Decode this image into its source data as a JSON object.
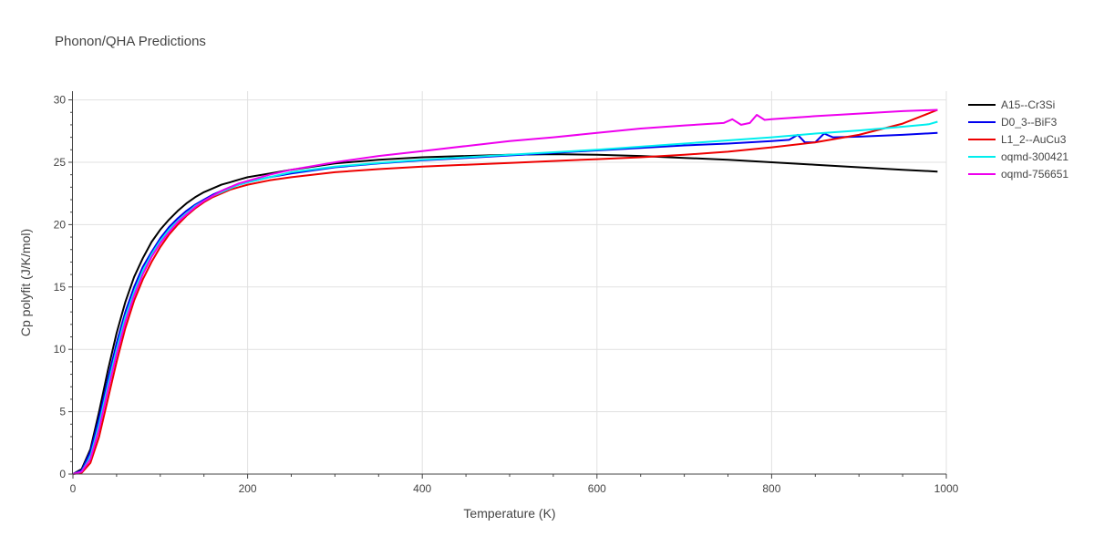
{
  "chart_data": {
    "type": "line",
    "title": "Phonon/QHA Predictions",
    "xlabel": "Temperature (K)",
    "ylabel": "Cp polyfit (J/K/mol)",
    "xlim": [
      0,
      1000
    ],
    "ylim": [
      0,
      30.7
    ],
    "xticks": [
      0,
      200,
      400,
      600,
      800,
      1000
    ],
    "yticks": [
      0,
      5,
      10,
      15,
      20,
      25,
      30
    ],
    "grid": true,
    "legend_position": "top-right",
    "series": [
      {
        "name": "A15--Cr3Si",
        "color": "#000000",
        "x": [
          0,
          10,
          20,
          30,
          40,
          50,
          60,
          70,
          80,
          90,
          100,
          110,
          120,
          130,
          140,
          150,
          160,
          170,
          180,
          190,
          200,
          225,
          250,
          300,
          350,
          400,
          450,
          500,
          550,
          600,
          650,
          700,
          750,
          800,
          850,
          900,
          950,
          990
        ],
        "y": [
          0,
          0.4,
          2.0,
          5.0,
          8.3,
          11.3,
          13.8,
          15.8,
          17.3,
          18.6,
          19.6,
          20.4,
          21.1,
          21.7,
          22.2,
          22.6,
          22.9,
          23.2,
          23.4,
          23.6,
          23.8,
          24.1,
          24.4,
          24.9,
          25.2,
          25.4,
          25.5,
          25.6,
          25.65,
          25.6,
          25.5,
          25.35,
          25.2,
          25.0,
          24.8,
          24.6,
          24.4,
          24.25
        ]
      },
      {
        "name": "D0_3--BiF3",
        "color": "#0000ee",
        "x": [
          0,
          10,
          20,
          30,
          40,
          50,
          60,
          70,
          80,
          90,
          100,
          110,
          120,
          130,
          140,
          150,
          160,
          170,
          180,
          190,
          200,
          225,
          250,
          300,
          350,
          400,
          450,
          500,
          550,
          600,
          650,
          700,
          750,
          800,
          820,
          830,
          838,
          850,
          860,
          870,
          900,
          950,
          990
        ],
        "y": [
          0,
          0.3,
          1.8,
          4.5,
          7.6,
          10.5,
          13.0,
          15.0,
          16.6,
          17.8,
          18.9,
          19.8,
          20.5,
          21.1,
          21.6,
          22.0,
          22.4,
          22.7,
          23.0,
          23.2,
          23.4,
          23.8,
          24.1,
          24.6,
          24.9,
          25.15,
          25.35,
          25.55,
          25.75,
          25.95,
          26.15,
          26.35,
          26.5,
          26.7,
          26.8,
          27.2,
          26.6,
          26.6,
          27.3,
          27.0,
          27.05,
          27.2,
          27.35
        ]
      },
      {
        "name": "L1_2--AuCu3",
        "color": "#ee0000",
        "x": [
          0,
          10,
          20,
          30,
          40,
          50,
          60,
          70,
          80,
          90,
          100,
          110,
          120,
          130,
          140,
          150,
          160,
          170,
          180,
          190,
          200,
          225,
          250,
          300,
          350,
          400,
          450,
          500,
          550,
          600,
          650,
          700,
          750,
          800,
          850,
          900,
          950,
          990
        ],
        "y": [
          0,
          0.1,
          0.9,
          3.0,
          6.0,
          9.0,
          11.7,
          13.9,
          15.6,
          17.0,
          18.2,
          19.2,
          20.0,
          20.7,
          21.3,
          21.8,
          22.2,
          22.5,
          22.8,
          23.0,
          23.2,
          23.55,
          23.8,
          24.2,
          24.45,
          24.65,
          24.8,
          24.95,
          25.1,
          25.25,
          25.4,
          25.6,
          25.85,
          26.2,
          26.6,
          27.2,
          28.1,
          29.2
        ]
      },
      {
        "name": "oqmd-300421",
        "color": "#00eeee",
        "x": [
          0,
          10,
          20,
          30,
          40,
          50,
          60,
          70,
          80,
          90,
          100,
          110,
          120,
          130,
          140,
          150,
          160,
          170,
          180,
          190,
          200,
          225,
          250,
          300,
          350,
          400,
          450,
          500,
          550,
          600,
          650,
          700,
          750,
          800,
          850,
          900,
          950,
          980,
          990
        ],
        "y": [
          0,
          0.2,
          1.4,
          4.0,
          7.1,
          10.0,
          12.6,
          14.6,
          16.3,
          17.6,
          18.7,
          19.6,
          20.3,
          20.9,
          21.5,
          21.9,
          22.3,
          22.6,
          22.9,
          23.2,
          23.4,
          23.8,
          24.2,
          24.65,
          24.95,
          25.2,
          25.4,
          25.6,
          25.8,
          26.0,
          26.25,
          26.5,
          26.75,
          27.0,
          27.3,
          27.55,
          27.85,
          28.05,
          28.25
        ]
      },
      {
        "name": "oqmd-756651",
        "color": "#ee00ee",
        "x": [
          0,
          10,
          20,
          30,
          40,
          50,
          60,
          70,
          80,
          90,
          100,
          110,
          120,
          130,
          140,
          150,
          160,
          170,
          180,
          190,
          200,
          225,
          250,
          300,
          350,
          400,
          450,
          500,
          550,
          600,
          650,
          700,
          745,
          755,
          765,
          775,
          783,
          792,
          800,
          850,
          900,
          950,
          990
        ],
        "y": [
          0,
          0.2,
          1.2,
          3.6,
          6.7,
          9.6,
          12.2,
          14.3,
          16.0,
          17.4,
          18.5,
          19.4,
          20.2,
          20.8,
          21.4,
          21.9,
          22.3,
          22.7,
          23.0,
          23.3,
          23.5,
          24.0,
          24.4,
          25.0,
          25.5,
          25.9,
          26.3,
          26.7,
          27.0,
          27.35,
          27.7,
          27.95,
          28.15,
          28.45,
          28.0,
          28.15,
          28.8,
          28.4,
          28.45,
          28.7,
          28.9,
          29.1,
          29.2
        ]
      }
    ]
  }
}
